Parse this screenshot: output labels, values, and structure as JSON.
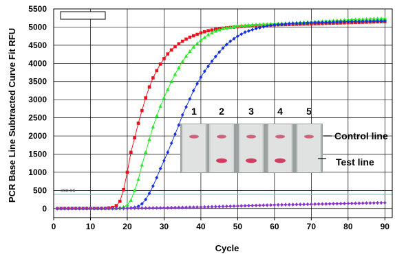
{
  "chart_data": {
    "type": "line",
    "xlabel": "Cycle",
    "ylabel": "PCR Base Line Subtracted Curve Fit RFU",
    "xlim": [
      0,
      92
    ],
    "ylim": [
      -250,
      5500
    ],
    "x_ticks": [
      "0",
      "10",
      "20",
      "30",
      "40",
      "50",
      "60",
      "70",
      "80",
      "90"
    ],
    "y_ticks": [
      "0",
      "500",
      "1000",
      "1500",
      "2000",
      "2500",
      "3000",
      "3500",
      "4000",
      "4500",
      "5000",
      "5500"
    ],
    "grid": true,
    "legend": "empty box, top-left",
    "threshold": {
      "value": 390.96,
      "label": "390.96"
    },
    "series": [
      {
        "color": "#e8141c",
        "marker": "square",
        "cycles": [
          1,
          90
        ],
        "points": [
          [
            1,
            0
          ],
          [
            14,
            5
          ],
          [
            16,
            30
          ],
          [
            17,
            80
          ],
          [
            18,
            200
          ],
          [
            19,
            520
          ],
          [
            20,
            1000
          ],
          [
            21,
            1550
          ],
          [
            22,
            1950
          ],
          [
            23,
            2350
          ],
          [
            24,
            2700
          ],
          [
            25,
            3050
          ],
          [
            26,
            3350
          ],
          [
            27,
            3600
          ],
          [
            28,
            3800
          ],
          [
            29,
            3980
          ],
          [
            30,
            4130
          ],
          [
            31,
            4260
          ],
          [
            32,
            4370
          ],
          [
            33,
            4460
          ],
          [
            34,
            4540
          ],
          [
            35,
            4610
          ],
          [
            36,
            4670
          ],
          [
            37,
            4720
          ],
          [
            38,
            4760
          ],
          [
            40,
            4840
          ],
          [
            42,
            4900
          ],
          [
            45,
            4960
          ],
          [
            50,
            5010
          ],
          [
            55,
            5040
          ],
          [
            60,
            5060
          ],
          [
            70,
            5090
          ],
          [
            80,
            5120
          ],
          [
            90,
            5150
          ]
        ]
      },
      {
        "color": "#22ee22",
        "marker": "triangle",
        "cycles": [
          1,
          90
        ],
        "points": [
          [
            1,
            0
          ],
          [
            17,
            5
          ],
          [
            19,
            40
          ],
          [
            20,
            100
          ],
          [
            21,
            230
          ],
          [
            22,
            500
          ],
          [
            23,
            800
          ],
          [
            24,
            1200
          ],
          [
            25,
            1550
          ],
          [
            26,
            1900
          ],
          [
            27,
            2250
          ],
          [
            28,
            2550
          ],
          [
            29,
            2820
          ],
          [
            30,
            3050
          ],
          [
            31,
            3280
          ],
          [
            32,
            3500
          ],
          [
            33,
            3700
          ],
          [
            34,
            3880
          ],
          [
            35,
            4050
          ],
          [
            36,
            4200
          ],
          [
            37,
            4330
          ],
          [
            38,
            4450
          ],
          [
            40,
            4640
          ],
          [
            42,
            4790
          ],
          [
            44,
            4890
          ],
          [
            46,
            4960
          ],
          [
            50,
            5030
          ],
          [
            55,
            5070
          ],
          [
            60,
            5090
          ],
          [
            70,
            5140
          ],
          [
            80,
            5200
          ],
          [
            90,
            5240
          ]
        ]
      },
      {
        "color": "#1530e0",
        "marker": "diamond",
        "cycles": [
          1,
          90
        ],
        "points": [
          [
            1,
            0
          ],
          [
            20,
            5
          ],
          [
            22,
            30
          ],
          [
            23,
            60
          ],
          [
            24,
            130
          ],
          [
            25,
            250
          ],
          [
            26,
            420
          ],
          [
            27,
            620
          ],
          [
            28,
            850
          ],
          [
            29,
            1100
          ],
          [
            30,
            1320
          ],
          [
            31,
            1550
          ],
          [
            32,
            1800
          ],
          [
            33,
            2050
          ],
          [
            34,
            2300
          ],
          [
            35,
            2580
          ],
          [
            36,
            2800
          ],
          [
            37,
            3020
          ],
          [
            38,
            3250
          ],
          [
            39,
            3440
          ],
          [
            40,
            3620
          ],
          [
            41,
            3780
          ],
          [
            42,
            3920
          ],
          [
            43,
            4060
          ],
          [
            44,
            4190
          ],
          [
            45,
            4310
          ],
          [
            46,
            4420
          ],
          [
            47,
            4520
          ],
          [
            48,
            4610
          ],
          [
            50,
            4750
          ],
          [
            52,
            4860
          ],
          [
            55,
            4960
          ],
          [
            58,
            5030
          ],
          [
            60,
            5060
          ],
          [
            65,
            5100
          ],
          [
            70,
            5120
          ],
          [
            80,
            5150
          ],
          [
            90,
            5170
          ]
        ]
      },
      {
        "color": "#8833cc",
        "marker": "diamond",
        "cycles": [
          1,
          90
        ],
        "points": [
          [
            1,
            0
          ],
          [
            10,
            2
          ],
          [
            20,
            8
          ],
          [
            30,
            20
          ],
          [
            40,
            40
          ],
          [
            50,
            70
          ],
          [
            60,
            100
          ],
          [
            70,
            120
          ],
          [
            80,
            140
          ],
          [
            90,
            160
          ]
        ]
      }
    ],
    "inset": {
      "lane_numbers": [
        "1",
        "2",
        "3",
        "4",
        "5"
      ],
      "control_line_label": "Control line",
      "test_line_label": "Test line",
      "control_band": [
        true,
        true,
        true,
        true,
        true
      ],
      "test_band": [
        false,
        true,
        true,
        true,
        false
      ]
    }
  }
}
